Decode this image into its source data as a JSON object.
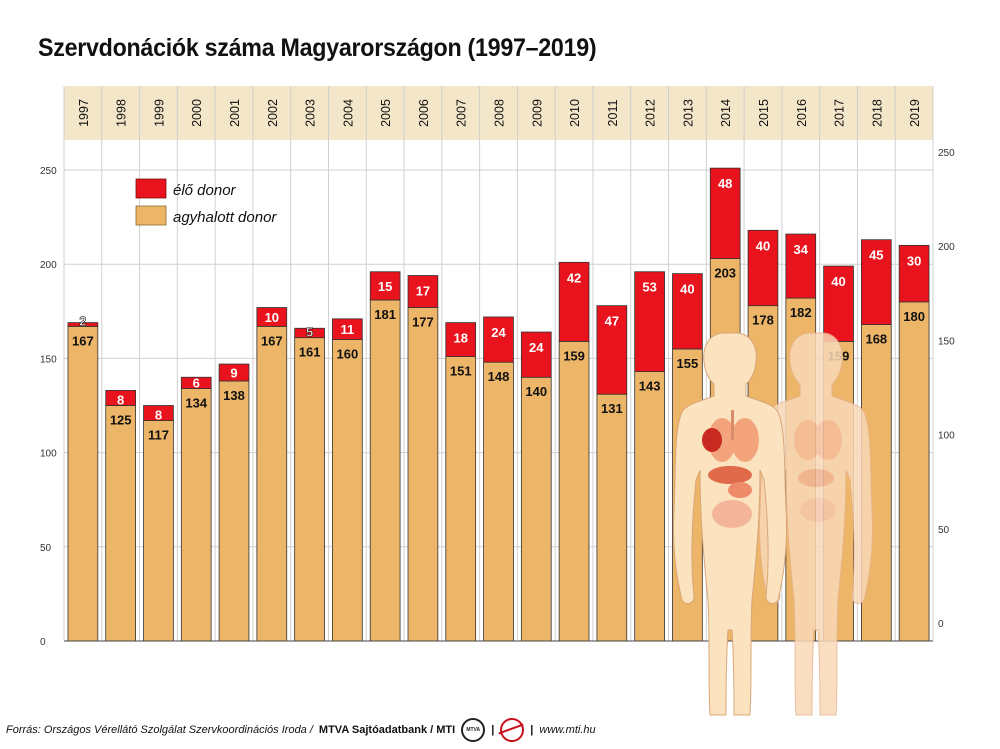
{
  "title": "Szervdonációk száma Magyarországon (1997–2019)",
  "footer": {
    "source": "Forrás: Országos Vérellátó Szolgálat Szervkoordinációs Iroda / ",
    "brand": "MTVA Sajtóadatbank / MTI",
    "logo_text": "MTVA",
    "url": "www.mti.hu"
  },
  "colors": {
    "brain_dead": "#ecb567",
    "living": "#e8131d",
    "year_band": "#f4e6c8",
    "grid": "#cccccc"
  },
  "chart_data": {
    "type": "bar",
    "stacked": true,
    "categories": [
      "1997",
      "1998",
      "1999",
      "2000",
      "2001",
      "2002",
      "2003",
      "2004",
      "2005",
      "2006",
      "2007",
      "2008",
      "2009",
      "2010",
      "2011",
      "2012",
      "2013",
      "2014",
      "2015",
      "2016",
      "2017",
      "2018",
      "2019"
    ],
    "series": [
      {
        "name": "agyhalott donor",
        "color": "#ecb567",
        "values": [
          167,
          125,
          117,
          134,
          138,
          167,
          161,
          160,
          181,
          177,
          151,
          148,
          140,
          159,
          131,
          143,
          155,
          203,
          178,
          182,
          159,
          168,
          180
        ]
      },
      {
        "name": "élő donor",
        "color": "#e8131d",
        "values": [
          2,
          8,
          8,
          6,
          9,
          10,
          5,
          11,
          15,
          17,
          18,
          24,
          24,
          42,
          47,
          53,
          40,
          48,
          40,
          34,
          40,
          45,
          30
        ]
      }
    ],
    "ylim": [
      0,
      250
    ],
    "yticks": [
      0,
      50,
      100,
      150,
      200,
      250
    ],
    "legend_position": "top-left",
    "grid": true
  }
}
